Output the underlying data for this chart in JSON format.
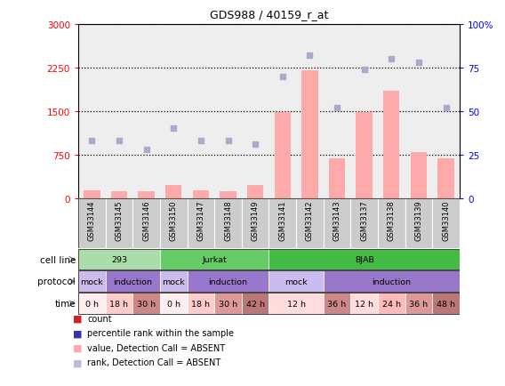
{
  "title": "GDS988 / 40159_r_at",
  "samples": [
    "GSM33144",
    "GSM33145",
    "GSM33146",
    "GSM33150",
    "GSM33147",
    "GSM33148",
    "GSM33149",
    "GSM33141",
    "GSM33142",
    "GSM33143",
    "GSM33137",
    "GSM33138",
    "GSM33139",
    "GSM33140"
  ],
  "bar_values": [
    130,
    120,
    110,
    220,
    130,
    120,
    230,
    1480,
    2200,
    680,
    1480,
    1850,
    800,
    680
  ],
  "dot_values": [
    33,
    33,
    28,
    40,
    33,
    33,
    31,
    70,
    82,
    52,
    74,
    80,
    78,
    52
  ],
  "ylim_left": [
    0,
    3000
  ],
  "ylim_right": [
    0,
    100
  ],
  "yticks_left": [
    0,
    750,
    1500,
    2250,
    3000
  ],
  "yticks_right": [
    0,
    25,
    50,
    75,
    100
  ],
  "bar_color": "#ffaaaa",
  "dot_color": "#aaaacc",
  "cell_lines": [
    {
      "label": "293",
      "start": 0,
      "end": 3,
      "color": "#aaddaa"
    },
    {
      "label": "Jurkat",
      "start": 3,
      "end": 7,
      "color": "#66cc66"
    },
    {
      "label": "BJAB",
      "start": 7,
      "end": 14,
      "color": "#44bb44"
    }
  ],
  "protocol_blocks": [
    {
      "label": "mock",
      "start": 0,
      "end": 1,
      "color": "#ccbbee"
    },
    {
      "label": "induction",
      "start": 1,
      "end": 3,
      "color": "#9977cc"
    },
    {
      "label": "mock",
      "start": 3,
      "end": 4,
      "color": "#ccbbee"
    },
    {
      "label": "induction",
      "start": 4,
      "end": 7,
      "color": "#9977cc"
    },
    {
      "label": "mock",
      "start": 7,
      "end": 9,
      "color": "#ccbbee"
    },
    {
      "label": "induction",
      "start": 9,
      "end": 14,
      "color": "#9977cc"
    }
  ],
  "time_blocks": [
    {
      "label": "0 h",
      "start": 0,
      "end": 1,
      "color": "#ffeeee"
    },
    {
      "label": "18 h",
      "start": 1,
      "end": 2,
      "color": "#ffcccc"
    },
    {
      "label": "30 h",
      "start": 2,
      "end": 3,
      "color": "#cc8888"
    },
    {
      "label": "0 h",
      "start": 3,
      "end": 4,
      "color": "#ffeeee"
    },
    {
      "label": "18 h",
      "start": 4,
      "end": 5,
      "color": "#ffcccc"
    },
    {
      "label": "30 h",
      "start": 5,
      "end": 6,
      "color": "#dd9999"
    },
    {
      "label": "42 h",
      "start": 6,
      "end": 7,
      "color": "#bb7777"
    },
    {
      "label": "12 h",
      "start": 7,
      "end": 9,
      "color": "#ffdddd"
    },
    {
      "label": "36 h",
      "start": 9,
      "end": 10,
      "color": "#cc8888"
    },
    {
      "label": "12 h",
      "start": 10,
      "end": 11,
      "color": "#ffdddd"
    },
    {
      "label": "24 h",
      "start": 11,
      "end": 12,
      "color": "#ffbbbb"
    },
    {
      "label": "36 h",
      "start": 12,
      "end": 13,
      "color": "#dd9999"
    },
    {
      "label": "48 h",
      "start": 13,
      "end": 14,
      "color": "#bb7777"
    }
  ],
  "row_labels": [
    "cell line",
    "protocol",
    "time"
  ],
  "legend_items": [
    {
      "label": "count",
      "color": "#cc2222"
    },
    {
      "label": "percentile rank within the sample",
      "color": "#3333aa"
    },
    {
      "label": "value, Detection Call = ABSENT",
      "color": "#ffaaaa"
    },
    {
      "label": "rank, Detection Call = ABSENT",
      "color": "#bbbbdd"
    }
  ],
  "bg_color": "#ffffff",
  "sample_bg": "#cccccc"
}
